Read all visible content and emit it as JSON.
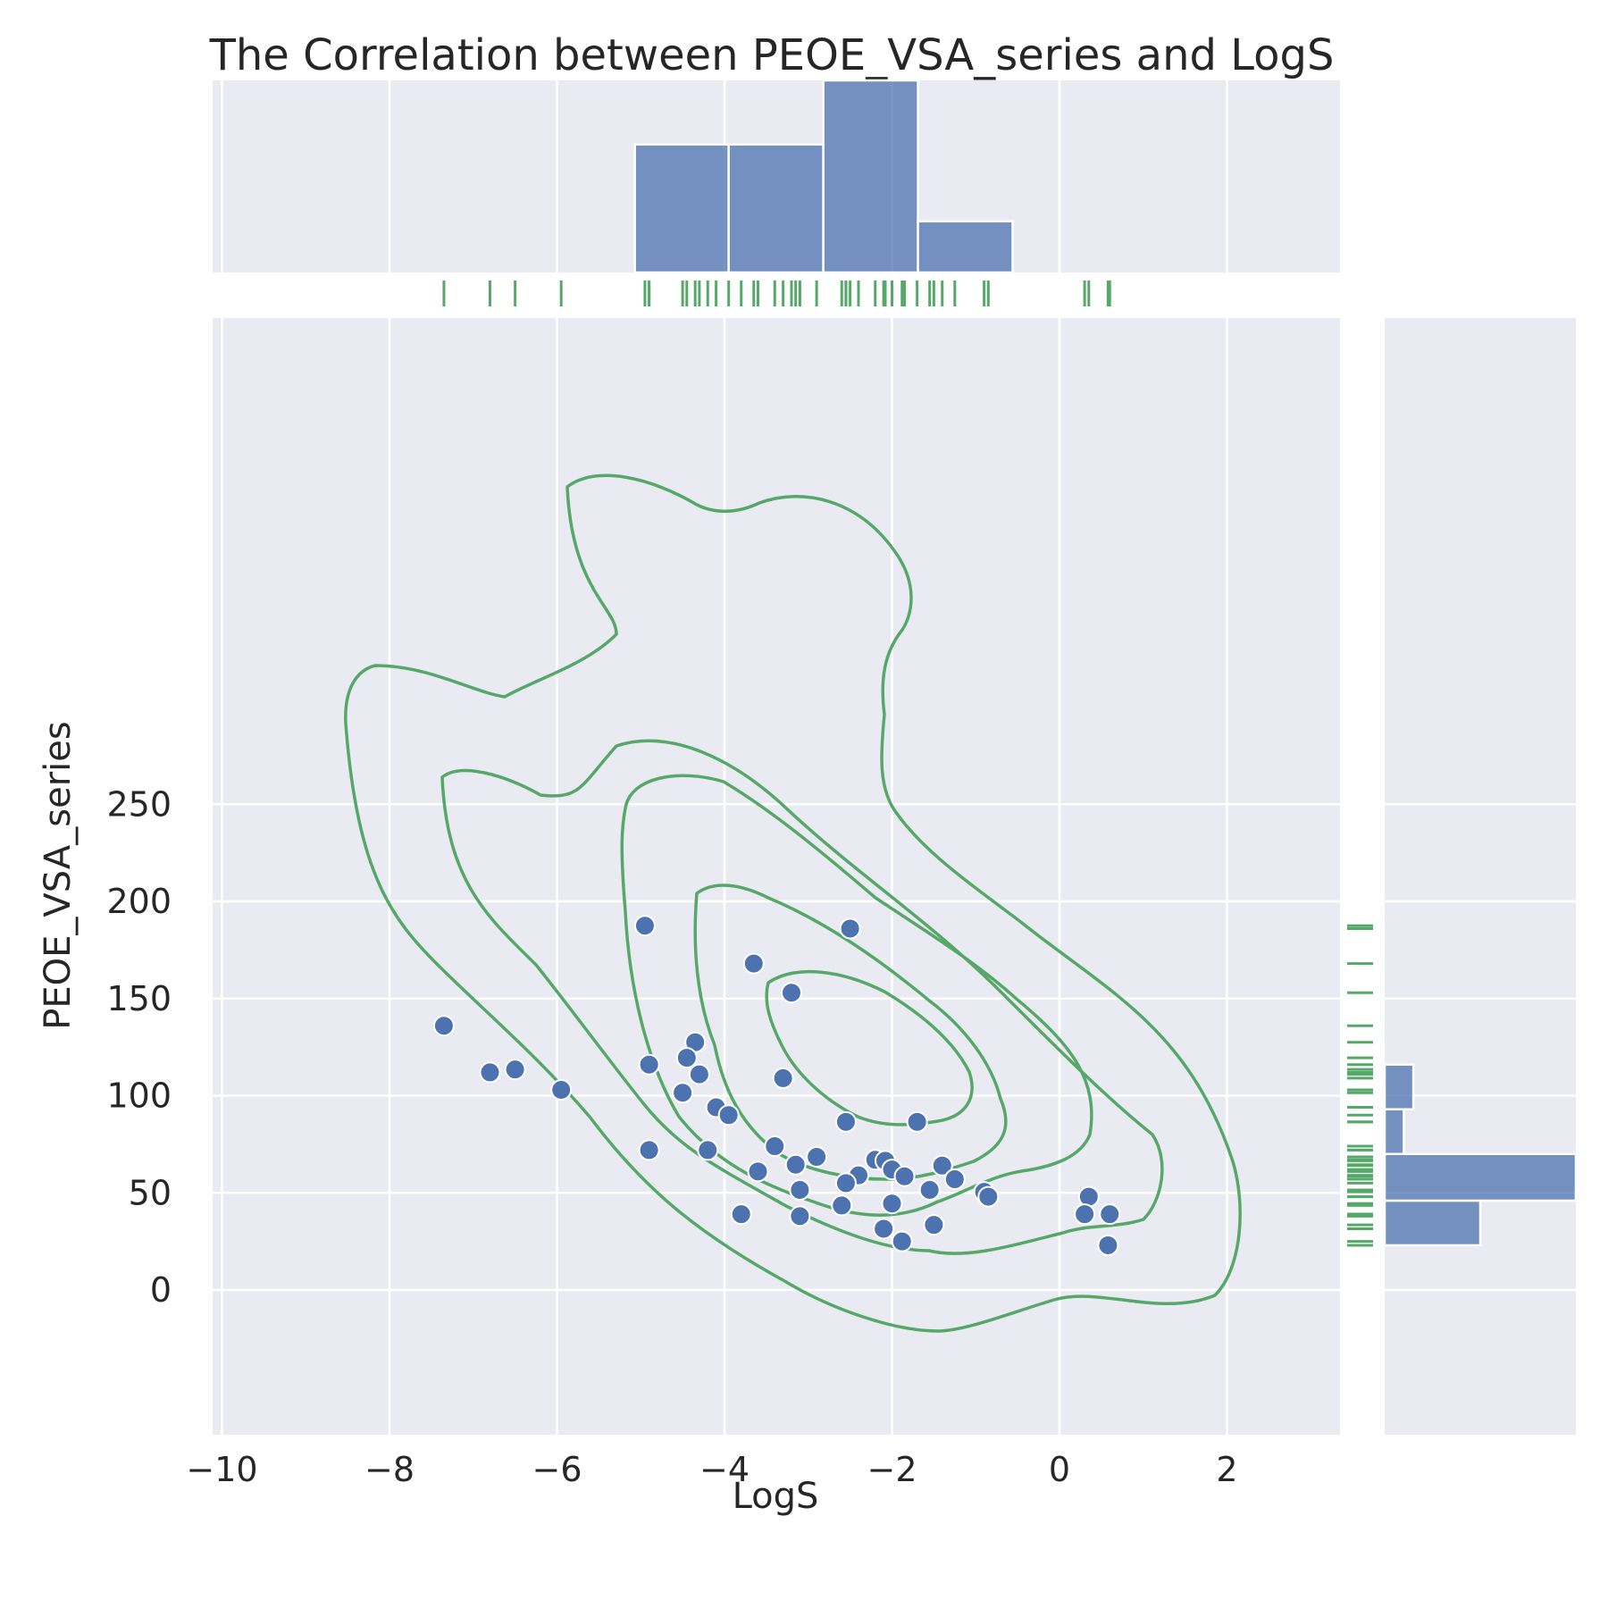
{
  "chart_data": {
    "type": "scatter",
    "title": "The Correlation between PEOE_VSA_series and LogS",
    "xlabel": "LogS",
    "ylabel": "PEOE_VSA_series",
    "xlim": [
      -10.1,
      3.3
    ],
    "ylim": [
      -40,
      250
    ],
    "x_ticks": [
      -10,
      -8,
      -6,
      -4,
      -2,
      0,
      2
    ],
    "x_tick_labels": [
      "−10",
      "−8",
      "−6",
      "−4",
      "−2",
      "0",
      "2"
    ],
    "y_ticks": [
      0,
      50,
      100,
      150,
      200,
      250
    ],
    "y_tick_labels": [
      "0",
      "50",
      "100",
      "150",
      "200",
      "250"
    ],
    "grid": true,
    "colors": {
      "points": "#4c72b0",
      "rug": "#55a868",
      "kde": "#55a868",
      "hist": "#4c72b0",
      "background": "#eaeaf2"
    },
    "points": [
      {
        "x": -4.95,
        "y": 187.5
      },
      {
        "x": -2.5,
        "y": 186
      },
      {
        "x": -3.65,
        "y": 168
      },
      {
        "x": -3.2,
        "y": 153
      },
      {
        "x": -7.35,
        "y": 136
      },
      {
        "x": -4.35,
        "y": 127.5
      },
      {
        "x": -4.45,
        "y": 119.5
      },
      {
        "x": -4.9,
        "y": 116
      },
      {
        "x": -6.5,
        "y": 113.5
      },
      {
        "x": -6.8,
        "y": 112
      },
      {
        "x": -4.3,
        "y": 111
      },
      {
        "x": -3.3,
        "y": 109
      },
      {
        "x": -5.95,
        "y": 103
      },
      {
        "x": -4.5,
        "y": 101.5
      },
      {
        "x": -4.1,
        "y": 94
      },
      {
        "x": -3.95,
        "y": 90
      },
      {
        "x": -2.55,
        "y": 86.5
      },
      {
        "x": -1.7,
        "y": 86.5
      },
      {
        "x": -3.4,
        "y": 74
      },
      {
        "x": -4.9,
        "y": 72
      },
      {
        "x": -4.2,
        "y": 72
      },
      {
        "x": -2.9,
        "y": 68.5
      },
      {
        "x": -2.2,
        "y": 67
      },
      {
        "x": -2.08,
        "y": 66.5
      },
      {
        "x": -3.15,
        "y": 64.5
      },
      {
        "x": -1.4,
        "y": 64
      },
      {
        "x": -2.0,
        "y": 62
      },
      {
        "x": -3.6,
        "y": 61
      },
      {
        "x": -2.4,
        "y": 59
      },
      {
        "x": -1.85,
        "y": 58.5
      },
      {
        "x": -1.25,
        "y": 57
      },
      {
        "x": -2.55,
        "y": 55
      },
      {
        "x": -3.1,
        "y": 51.5
      },
      {
        "x": -1.55,
        "y": 51.5
      },
      {
        "x": -0.9,
        "y": 50.5
      },
      {
        "x": -0.85,
        "y": 48
      },
      {
        "x": 0.35,
        "y": 48
      },
      {
        "x": -2.0,
        "y": 44.5
      },
      {
        "x": -2.6,
        "y": 43.5
      },
      {
        "x": -3.8,
        "y": 39
      },
      {
        "x": 0.3,
        "y": 39
      },
      {
        "x": 0.6,
        "y": 39
      },
      {
        "x": -3.1,
        "y": 38
      },
      {
        "x": -1.5,
        "y": 33.5
      },
      {
        "x": -2.1,
        "y": 31.5
      },
      {
        "x": -1.88,
        "y": 25
      },
      {
        "x": 0.58,
        "y": 23
      }
    ],
    "x_histogram": [
      {
        "bin": [
          -5.07,
          -3.95
        ],
        "count": 10
      },
      {
        "bin": [
          -3.95,
          -2.82
        ],
        "count": 10
      },
      {
        "bin": [
          -2.82,
          -1.69
        ],
        "count": 15
      },
      {
        "bin": [
          -1.69,
          -0.56
        ],
        "count": 4
      }
    ],
    "y_histogram": [
      {
        "bin": [
          23,
          46
        ],
        "count": 10
      },
      {
        "bin": [
          46,
          70
        ],
        "count": 20
      },
      {
        "bin": [
          70,
          93
        ],
        "count": 2
      },
      {
        "bin": [
          93,
          116
        ],
        "count": 3
      }
    ],
    "kde_levels": 5
  }
}
